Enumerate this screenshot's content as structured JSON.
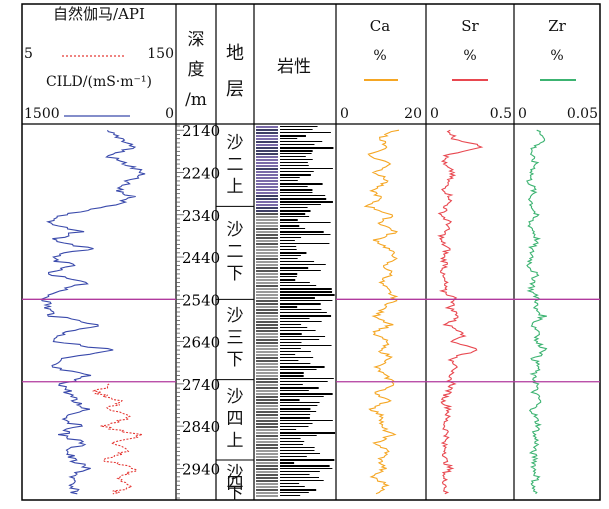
{
  "chart_data": {
    "type": "line",
    "tracks": {
      "gamma": {
        "title": "自然伽马/API",
        "range_min": "5",
        "range_max": "150",
        "color": "#e53935",
        "style": "dotted",
        "xlim": [
          5,
          150
        ]
      },
      "cild": {
        "title": "CILD/(mS·m⁻¹)",
        "range_left": "1500",
        "range_right": "0",
        "color": "#3949ab",
        "xlim": [
          1500,
          0
        ]
      },
      "depth": {
        "title_chars": [
          "深",
          "度",
          "/m"
        ],
        "ticks": [
          "2140",
          "2240",
          "2340",
          "2440",
          "2540",
          "2640",
          "2740",
          "2840",
          "2940"
        ],
        "ylim": [
          2130,
          3010
        ]
      },
      "stratum": {
        "title_chars": [
          "地",
          "层"
        ],
        "units": [
          {
            "chars": [
              "沙",
              "二",
              "上"
            ],
            "top": 2130,
            "bottom": 2320
          },
          {
            "chars": [
              "沙",
              "二",
              "下"
            ],
            "top": 2320,
            "bottom": 2540
          },
          {
            "chars": [
              "沙",
              "三",
              "下"
            ],
            "top": 2540,
            "bottom": 2730
          },
          {
            "chars": [
              "沙",
              "四",
              "上"
            ],
            "top": 2730,
            "bottom": 2920
          },
          {
            "chars": [
              "沙",
              "四",
              "下"
            ],
            "top": 2920,
            "bottom": 3010
          }
        ]
      },
      "lithology": {
        "title": "岩性"
      },
      "ca": {
        "name": "Ca",
        "unit": "%",
        "min": "0",
        "max": "20",
        "color": "#f5a623",
        "xlim": [
          0,
          20
        ]
      },
      "sr": {
        "name": "Sr",
        "unit": "%",
        "min": "0",
        "max": "0.5",
        "color": "#e8474f",
        "xlim": [
          0,
          0.5
        ]
      },
      "zr": {
        "name": "Zr",
        "unit": "%",
        "min": "0",
        "max": "0.05",
        "color": "#3cb371",
        "xlim": [
          0,
          0.05
        ]
      }
    },
    "markers": {
      "color": "#b03a9e",
      "depths": [
        2540,
        2735
      ]
    },
    "series": [
      {
        "name": "CILD",
        "depth": [
          2140,
          2160,
          2180,
          2200,
          2220,
          2240,
          2260,
          2280,
          2300,
          2320,
          2340,
          2360,
          2380,
          2400,
          2420,
          2440,
          2460,
          2480,
          2500,
          2520,
          2540,
          2560,
          2580,
          2600,
          2620,
          2640,
          2660,
          2680,
          2700,
          2720,
          2740,
          2760,
          2780,
          2800,
          2820,
          2840,
          2860,
          2880,
          2900,
          2920,
          2940,
          2960,
          2980,
          3000
        ],
        "values": [
          700,
          500,
          380,
          650,
          470,
          300,
          450,
          560,
          390,
          620,
          1100,
          1270,
          950,
          1200,
          840,
          1260,
          1020,
          1300,
          820,
          1180,
          1270,
          1260,
          1200,
          720,
          1100,
          1180,
          600,
          1150,
          1230,
          870,
          1100,
          1050,
          1000,
          850,
          1080,
          960,
          1120,
          900,
          1060,
          1010,
          870,
          1000,
          1050,
          960
        ]
      },
      {
        "name": "自然伽马",
        "depth": [
          2740,
          2760,
          2780,
          2800,
          2820,
          2840,
          2860,
          2880,
          2900,
          2920,
          2940,
          2960,
          2980,
          3000
        ],
        "values": [
          90,
          75,
          100,
          88,
          110,
          78,
          120,
          95,
          105,
          82,
          115,
          98,
          108,
          92
        ]
      },
      {
        "name": "Ca",
        "depth": [
          2140,
          2160,
          2180,
          2200,
          2220,
          2240,
          2260,
          2280,
          2300,
          2320,
          2340,
          2360,
          2380,
          2400,
          2420,
          2440,
          2460,
          2480,
          2500,
          2520,
          2540,
          2560,
          2580,
          2600,
          2620,
          2640,
          2660,
          2680,
          2700,
          2720,
          2740,
          2760,
          2780,
          2800,
          2820,
          2840,
          2860,
          2880,
          2900,
          2920,
          2940,
          2960,
          2980,
          3000
        ],
        "values": [
          14,
          10,
          12,
          7,
          13,
          9,
          12,
          8,
          10,
          7,
          13,
          10,
          14,
          9,
          12,
          14,
          11,
          13,
          10,
          12,
          14,
          11,
          9,
          13,
          8,
          12,
          10,
          13,
          9,
          11,
          14,
          9,
          12,
          8,
          11,
          10,
          13,
          9,
          12,
          10,
          11,
          8,
          12,
          9
        ]
      },
      {
        "name": "Sr",
        "depth": [
          2140,
          2160,
          2180,
          2200,
          2220,
          2240,
          2260,
          2280,
          2300,
          2320,
          2340,
          2360,
          2380,
          2400,
          2420,
          2440,
          2460,
          2480,
          2500,
          2520,
          2540,
          2560,
          2580,
          2600,
          2620,
          2640,
          2660,
          2680,
          2700,
          2720,
          2740,
          2760,
          2780,
          2800,
          2820,
          2840,
          2860,
          2880,
          2900,
          2920,
          2940,
          2960,
          2980,
          3000
        ],
        "values": [
          0.12,
          0.15,
          0.33,
          0.1,
          0.08,
          0.14,
          0.11,
          0.09,
          0.13,
          0.1,
          0.07,
          0.12,
          0.09,
          0.06,
          0.11,
          0.08,
          0.1,
          0.07,
          0.09,
          0.08,
          0.16,
          0.12,
          0.18,
          0.1,
          0.22,
          0.14,
          0.3,
          0.12,
          0.18,
          0.1,
          0.14,
          0.11,
          0.08,
          0.12,
          0.1,
          0.09,
          0.11,
          0.08,
          0.1,
          0.09,
          0.12,
          0.08,
          0.1,
          0.09
        ]
      },
      {
        "name": "Zr",
        "depth": [
          2140,
          2160,
          2180,
          2200,
          2220,
          2240,
          2260,
          2280,
          2300,
          2320,
          2340,
          2360,
          2380,
          2400,
          2420,
          2440,
          2460,
          2480,
          2500,
          2520,
          2540,
          2560,
          2580,
          2600,
          2620,
          2640,
          2660,
          2680,
          2700,
          2720,
          2740,
          2760,
          2780,
          2800,
          2820,
          2840,
          2860,
          2880,
          2900,
          2920,
          2940,
          2960,
          2980,
          3000
        ],
        "values": [
          0.012,
          0.018,
          0.01,
          0.008,
          0.011,
          0.009,
          0.007,
          0.01,
          0.008,
          0.009,
          0.011,
          0.007,
          0.01,
          0.012,
          0.008,
          0.009,
          0.007,
          0.011,
          0.01,
          0.008,
          0.013,
          0.01,
          0.016,
          0.009,
          0.014,
          0.011,
          0.018,
          0.01,
          0.013,
          0.009,
          0.012,
          0.01,
          0.014,
          0.009,
          0.011,
          0.013,
          0.01,
          0.012,
          0.009,
          0.011,
          0.01,
          0.012,
          0.009,
          0.011
        ]
      }
    ]
  }
}
